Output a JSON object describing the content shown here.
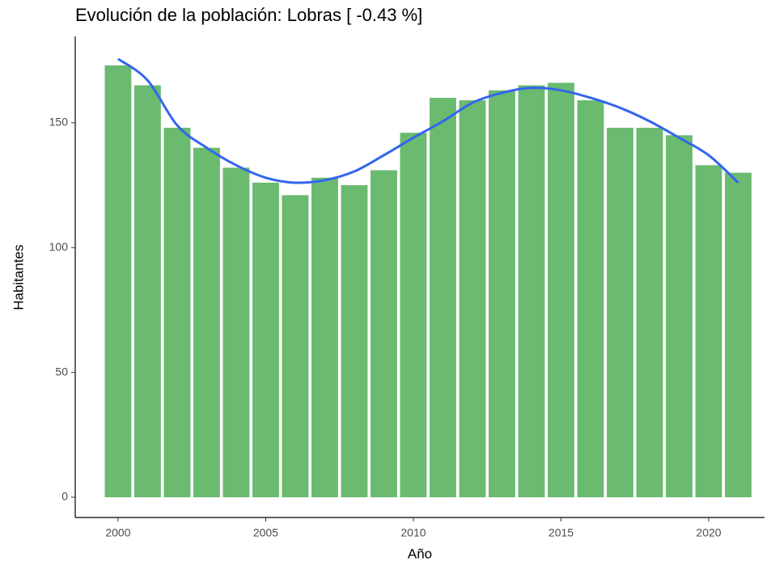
{
  "chart_data": {
    "type": "bar",
    "title": "Evolución de la población: Lobras [ -0.43 %]",
    "xlabel": "Año",
    "ylabel": "Habitantes",
    "x": [
      2000,
      2001,
      2002,
      2003,
      2004,
      2005,
      2006,
      2007,
      2008,
      2009,
      2010,
      2011,
      2012,
      2013,
      2014,
      2015,
      2016,
      2017,
      2018,
      2019,
      2020,
      2021
    ],
    "values": [
      173,
      165,
      148,
      140,
      132,
      126,
      121,
      128,
      125,
      131,
      146,
      160,
      159,
      163,
      165,
      166,
      159,
      148,
      148,
      145,
      133,
      130
    ],
    "color": "#6aba6f",
    "trend": {
      "type": "line",
      "color": "#3366ee",
      "values": [
        175.6,
        167,
        149,
        140,
        133,
        128,
        126,
        127,
        130.5,
        137,
        144,
        150.6,
        158,
        162,
        164,
        163,
        160,
        156,
        150.6,
        144,
        137,
        126
      ]
    },
    "xlim": [
      1998.55,
      2021.89
    ],
    "ylim": [
      -8.1,
      184.6
    ],
    "xticks": [
      2000,
      2005,
      2010,
      2015,
      2020
    ],
    "yticks": [
      0,
      50,
      100,
      150
    ],
    "grid": false
  }
}
